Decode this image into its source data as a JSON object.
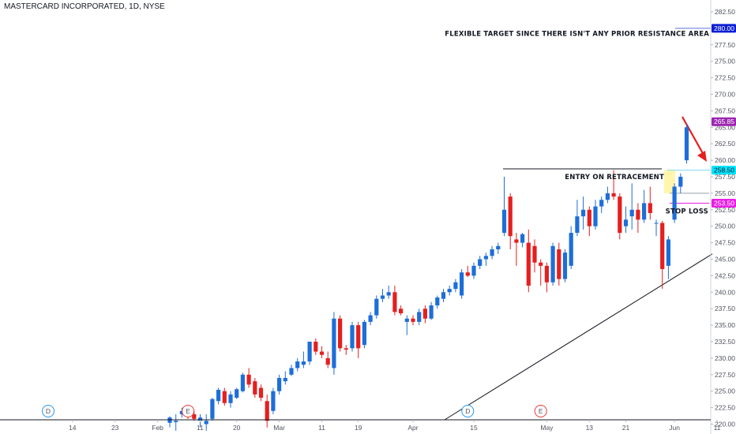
{
  "chart_data": {
    "type": "candlestick",
    "title": "MASTERCARD INCORPORATED, 1D, NYSE",
    "ylim": [
      220.0,
      282.5
    ],
    "y_ticks": [
      "220.00",
      "222.50",
      "225.00",
      "227.50",
      "230.00",
      "232.50",
      "235.00",
      "237.50",
      "240.00",
      "242.50",
      "245.00",
      "247.50",
      "250.00",
      "252.50",
      "255.00",
      "257.50",
      "260.00",
      "262.50",
      "265.00",
      "267.50",
      "270.00",
      "272.50",
      "275.00",
      "277.50",
      "282.50"
    ],
    "x_ticks": [
      {
        "label": "14",
        "i": -16
      },
      {
        "label": "23",
        "i": -9
      },
      {
        "label": "Feb",
        "i": -2
      },
      {
        "label": "11",
        "i": 5
      },
      {
        "label": "20",
        "i": 11
      },
      {
        "label": "Mar",
        "i": 18
      },
      {
        "label": "11",
        "i": 25
      },
      {
        "label": "19",
        "i": 31
      },
      {
        "label": "Apr",
        "i": 40
      },
      {
        "label": "15",
        "i": 50
      },
      {
        "label": "May",
        "i": 62
      },
      {
        "label": "13",
        "i": 69
      },
      {
        "label": "21",
        "i": 75
      },
      {
        "label": "Jun",
        "i": 83
      },
      {
        "label": "11",
        "i": 90
      }
    ],
    "candles": [
      {
        "o": 220.2,
        "h": 221.2,
        "l": 219.5,
        "c": 221.0
      },
      {
        "o": 220.3,
        "h": 221.5,
        "l": 219.0,
        "c": 220.5
      },
      {
        "o": 221.5,
        "h": 222.5,
        "l": 221.0,
        "c": 222.0
      },
      {
        "o": 222.0,
        "h": 222.3,
        "l": 220.8,
        "c": 221.2
      },
      {
        "o": 221.5,
        "h": 222.0,
        "l": 220.5,
        "c": 220.8
      },
      {
        "o": 220.5,
        "h": 221.5,
        "l": 219.5,
        "c": 221.0
      },
      {
        "o": 220.0,
        "h": 221.5,
        "l": 219.0,
        "c": 220.5
      },
      {
        "o": 220.8,
        "h": 224.0,
        "l": 220.5,
        "c": 223.8
      },
      {
        "o": 223.5,
        "h": 225.5,
        "l": 223.0,
        "c": 225.2
      },
      {
        "o": 225.0,
        "h": 225.5,
        "l": 222.8,
        "c": 223.2
      },
      {
        "o": 223.2,
        "h": 225.0,
        "l": 222.5,
        "c": 224.5
      },
      {
        "o": 224.0,
        "h": 225.5,
        "l": 223.8,
        "c": 225.3
      },
      {
        "o": 225.0,
        "h": 227.8,
        "l": 224.8,
        "c": 227.5
      },
      {
        "o": 227.5,
        "h": 228.5,
        "l": 225.5,
        "c": 226.0
      },
      {
        "o": 226.5,
        "h": 227.0,
        "l": 224.0,
        "c": 224.5
      },
      {
        "o": 225.5,
        "h": 226.0,
        "l": 223.5,
        "c": 224.0
      },
      {
        "o": 223.5,
        "h": 224.5,
        "l": 219.5,
        "c": 220.5
      },
      {
        "o": 222.0,
        "h": 225.5,
        "l": 221.5,
        "c": 225.0
      },
      {
        "o": 225.0,
        "h": 227.5,
        "l": 224.5,
        "c": 227.0
      },
      {
        "o": 226.5,
        "h": 228.0,
        "l": 226.0,
        "c": 227.0
      },
      {
        "o": 227.5,
        "h": 229.0,
        "l": 227.3,
        "c": 228.5
      },
      {
        "o": 228.5,
        "h": 230.0,
        "l": 228.0,
        "c": 229.5
      },
      {
        "o": 229.0,
        "h": 231.0,
        "l": 228.5,
        "c": 229.5
      },
      {
        "o": 229.5,
        "h": 232.5,
        "l": 229.0,
        "c": 232.5
      },
      {
        "o": 232.5,
        "h": 233.0,
        "l": 230.5,
        "c": 231.0
      },
      {
        "o": 231.0,
        "h": 231.8,
        "l": 230.0,
        "c": 230.5
      },
      {
        "o": 230.0,
        "h": 231.0,
        "l": 228.5,
        "c": 229.0
      },
      {
        "o": 228.5,
        "h": 237.0,
        "l": 227.5,
        "c": 236.0
      },
      {
        "o": 236.0,
        "h": 236.5,
        "l": 231.0,
        "c": 231.5
      },
      {
        "o": 231.5,
        "h": 232.0,
        "l": 230.5,
        "c": 231.3
      },
      {
        "o": 231.5,
        "h": 235.5,
        "l": 231.0,
        "c": 235.0
      },
      {
        "o": 235.0,
        "h": 235.5,
        "l": 230.0,
        "c": 231.5
      },
      {
        "o": 232.0,
        "h": 235.8,
        "l": 231.5,
        "c": 235.5
      },
      {
        "o": 235.5,
        "h": 237.0,
        "l": 235.0,
        "c": 236.5
      },
      {
        "o": 236.5,
        "h": 239.5,
        "l": 236.0,
        "c": 239.0
      },
      {
        "o": 239.0,
        "h": 240.5,
        "l": 238.5,
        "c": 239.5
      },
      {
        "o": 239.5,
        "h": 241.0,
        "l": 239.0,
        "c": 240.0
      },
      {
        "o": 240.0,
        "h": 241.0,
        "l": 236.5,
        "c": 237.0
      },
      {
        "o": 237.5,
        "h": 238.0,
        "l": 236.5,
        "c": 236.8
      },
      {
        "o": 235.5,
        "h": 236.5,
        "l": 233.5,
        "c": 236.0
      },
      {
        "o": 236.0,
        "h": 236.5,
        "l": 235.0,
        "c": 235.5
      },
      {
        "o": 235.5,
        "h": 237.5,
        "l": 235.0,
        "c": 237.0
      },
      {
        "o": 237.5,
        "h": 238.0,
        "l": 235.3,
        "c": 236.0
      },
      {
        "o": 236.0,
        "h": 238.5,
        "l": 235.8,
        "c": 238.0
      },
      {
        "o": 238.0,
        "h": 239.5,
        "l": 237.5,
        "c": 239.2
      },
      {
        "o": 239.0,
        "h": 240.5,
        "l": 238.5,
        "c": 240.0
      },
      {
        "o": 240.0,
        "h": 241.0,
        "l": 239.5,
        "c": 240.5
      },
      {
        "o": 240.5,
        "h": 242.0,
        "l": 240.0,
        "c": 241.5
      },
      {
        "o": 239.5,
        "h": 243.5,
        "l": 239.0,
        "c": 243.0
      },
      {
        "o": 243.0,
        "h": 244.0,
        "l": 242.3,
        "c": 242.5
      },
      {
        "o": 242.5,
        "h": 244.5,
        "l": 242.0,
        "c": 244.0
      },
      {
        "o": 244.0,
        "h": 245.5,
        "l": 243.5,
        "c": 245.0
      },
      {
        "o": 245.0,
        "h": 246.0,
        "l": 244.0,
        "c": 245.5
      },
      {
        "o": 245.5,
        "h": 247.0,
        "l": 245.0,
        "c": 246.5
      },
      {
        "o": 246.5,
        "h": 247.5,
        "l": 245.8,
        "c": 247.0
      },
      {
        "o": 249.0,
        "h": 257.5,
        "l": 248.5,
        "c": 252.5
      },
      {
        "o": 254.5,
        "h": 255.0,
        "l": 246.5,
        "c": 248.5
      },
      {
        "o": 248.0,
        "h": 249.0,
        "l": 244.0,
        "c": 247.5
      },
      {
        "o": 247.5,
        "h": 249.0,
        "l": 246.8,
        "c": 248.8
      },
      {
        "o": 247.5,
        "h": 249.5,
        "l": 240.0,
        "c": 241.0
      },
      {
        "o": 247.0,
        "h": 248.0,
        "l": 243.0,
        "c": 244.5
      },
      {
        "o": 244.5,
        "h": 245.0,
        "l": 241.0,
        "c": 244.0
      },
      {
        "o": 244.0,
        "h": 244.5,
        "l": 240.0,
        "c": 241.5
      },
      {
        "o": 241.5,
        "h": 247.5,
        "l": 241.0,
        "c": 247.0
      },
      {
        "o": 246.5,
        "h": 247.5,
        "l": 241.0,
        "c": 242.0
      },
      {
        "o": 242.0,
        "h": 246.5,
        "l": 241.5,
        "c": 246.0
      },
      {
        "o": 244.0,
        "h": 250.0,
        "l": 243.5,
        "c": 249.0
      },
      {
        "o": 249.0,
        "h": 254.0,
        "l": 248.5,
        "c": 251.5
      },
      {
        "o": 251.5,
        "h": 254.5,
        "l": 249.5,
        "c": 252.5
      },
      {
        "o": 252.5,
        "h": 253.0,
        "l": 248.5,
        "c": 250.0
      },
      {
        "o": 250.0,
        "h": 254.0,
        "l": 249.5,
        "c": 253.0
      },
      {
        "o": 253.0,
        "h": 254.5,
        "l": 252.0,
        "c": 254.0
      },
      {
        "o": 254.0,
        "h": 256.0,
        "l": 253.5,
        "c": 255.0
      },
      {
        "o": 255.0,
        "h": 258.5,
        "l": 254.0,
        "c": 254.5
      },
      {
        "o": 254.5,
        "h": 255.0,
        "l": 248.0,
        "c": 249.0
      },
      {
        "o": 250.0,
        "h": 253.0,
        "l": 249.0,
        "c": 251.0
      },
      {
        "o": 251.5,
        "h": 256.5,
        "l": 249.5,
        "c": 252.5
      },
      {
        "o": 252.5,
        "h": 253.5,
        "l": 249.0,
        "c": 251.0
      },
      {
        "o": 251.0,
        "h": 255.5,
        "l": 250.5,
        "c": 253.5
      },
      {
        "o": 253.5,
        "h": 256.0,
        "l": 251.0,
        "c": 252.0
      },
      {
        "o": 250.5,
        "h": 251.0,
        "l": 248.5,
        "c": 250.5
      },
      {
        "o": 250.5,
        "h": 250.8,
        "l": 240.5,
        "c": 243.5
      },
      {
        "o": 244.0,
        "h": 248.5,
        "l": 242.0,
        "c": 248.0
      },
      {
        "o": 251.0,
        "h": 256.5,
        "l": 250.5,
        "c": 256.0
      },
      {
        "o": 256.0,
        "h": 258.0,
        "l": 255.0,
        "c": 257.5
      },
      {
        "o": 260.0,
        "h": 265.5,
        "l": 259.5,
        "c": 265.0
      }
    ],
    "levels": [
      {
        "name": "target",
        "value": 280.0,
        "label": "280.00",
        "color": "#0b1fd1"
      },
      {
        "name": "last",
        "value": 265.85,
        "label": "265.85",
        "color": "#9c27b0"
      },
      {
        "name": "entry",
        "value": 258.5,
        "label": "258.50",
        "color": "#00e5ff"
      },
      {
        "name": "stop",
        "value": 253.5,
        "label": "253.50",
        "color": "#e91ee6"
      }
    ],
    "annotations": [
      {
        "name": "target-note",
        "text": "FLEXIBLE TARGET SINCE THERE ISN'T ANY PRIOR RESISTANCE AREA"
      },
      {
        "name": "entry-note",
        "text": "ENTRY ON RETRACEMENT"
      },
      {
        "name": "stop-note",
        "text": "STOP LOSS"
      }
    ],
    "events": [
      {
        "label": "D",
        "i": -20,
        "color": "#2196f3"
      },
      {
        "label": "E",
        "i": 3,
        "color": "#e53935"
      },
      {
        "label": "D",
        "i": 49,
        "color": "#2196f3"
      },
      {
        "label": "E",
        "i": 61,
        "color": "#e53935"
      }
    ],
    "colors": {
      "up": "#1e6ed8",
      "down": "#e51f1f",
      "axis": "#50535e"
    }
  }
}
